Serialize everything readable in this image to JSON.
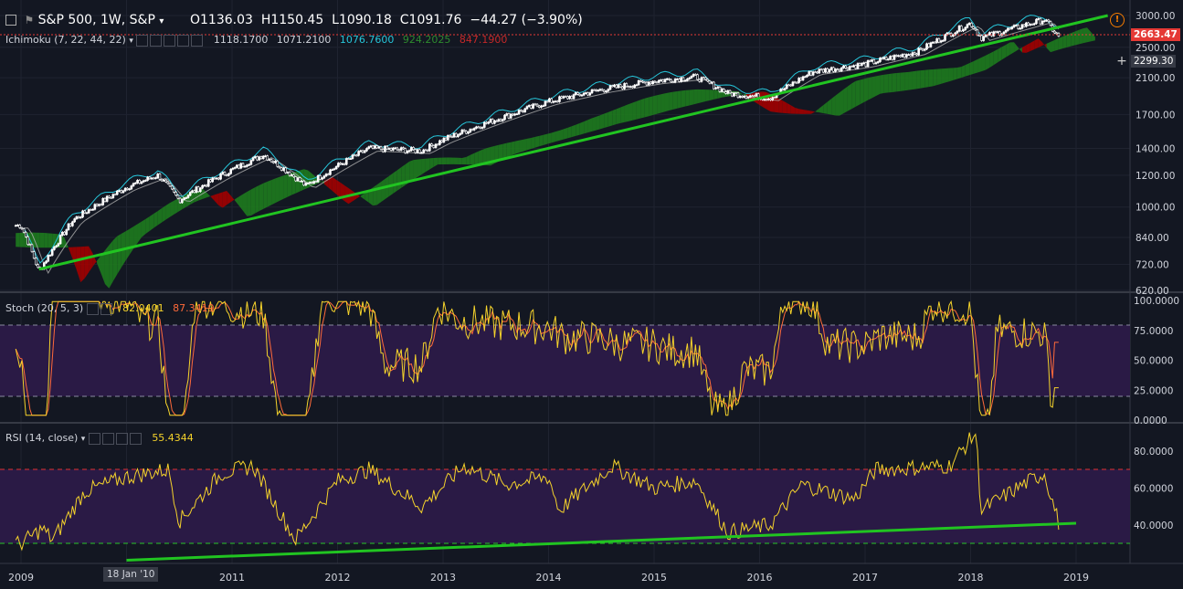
{
  "header": {
    "symbol": "S&P 500, 1W, S&P",
    "open": "O1136.03",
    "high": "H1150.45",
    "low": "L1090.18",
    "close": "C1091.76",
    "change": "−44.27 (−3.90%)"
  },
  "ichimoku": {
    "label": "Ichimoku (7, 22, 44, 22)",
    "v1": "1118.1700",
    "v2": "1071.2100",
    "v3": "1076.7600",
    "v4": "924.2025",
    "v5": "847.1900"
  },
  "stoch": {
    "label": "Stoch (20, 5, 3)",
    "k": "82.0401",
    "d": "87.3419"
  },
  "rsi": {
    "label": "RSI (14, close)",
    "value": "55.4344"
  },
  "price_badges": {
    "last": "2663.47",
    "crosshair": "2299.30"
  },
  "crosshair_date": "18 Jan '10",
  "colors": {
    "background": "#131722",
    "up": "#ffffff",
    "tenkan": "#26c6da",
    "kijun": "#b0b0b0",
    "cloud_green": "#1e7b1e",
    "cloud_red": "#a30000",
    "trendline": "#21c421",
    "stoch_k": "#f5d32b",
    "stoch_d": "#ff6a3a",
    "rsi": "#f5d32b",
    "indicator_bg": "#2a1a45"
  },
  "chart_data": [
    {
      "type": "candlestick",
      "title": "S&P 500, 1W, S&P",
      "x": [
        "2009",
        "2010",
        "2011",
        "2012",
        "2013",
        "2014",
        "2015",
        "2016",
        "2017",
        "2018",
        "2019"
      ],
      "y_scale": "log",
      "y_ticks": [
        620,
        720,
        840,
        1000,
        1200,
        1400,
        1700,
        2100,
        2500,
        3000
      ],
      "ylim": [
        620,
        3000
      ],
      "approx_close_path": [
        [
          2009.0,
          900
        ],
        [
          2009.17,
          690
        ],
        [
          2009.5,
          930
        ],
        [
          2010.0,
          1120
        ],
        [
          2010.3,
          1200
        ],
        [
          2010.5,
          1040
        ],
        [
          2010.9,
          1200
        ],
        [
          2011.3,
          1350
        ],
        [
          2011.7,
          1130
        ],
        [
          2012.3,
          1400
        ],
        [
          2012.8,
          1380
        ],
        [
          2013.0,
          1470
        ],
        [
          2013.5,
          1650
        ],
        [
          2014.0,
          1830
        ],
        [
          2014.5,
          1960
        ],
        [
          2015.0,
          2060
        ],
        [
          2015.4,
          2110
        ],
        [
          2015.7,
          1920
        ],
        [
          2016.1,
          1870
        ],
        [
          2016.5,
          2170
        ],
        [
          2017.0,
          2270
        ],
        [
          2017.5,
          2440
        ],
        [
          2018.0,
          2870
        ],
        [
          2018.1,
          2640
        ],
        [
          2018.7,
          2930
        ],
        [
          2018.83,
          2660
        ]
      ],
      "trendline": [
        [
          2009.17,
          700
        ],
        [
          2019.3,
          3000
        ]
      ],
      "ichimoku_values": [
        1118.17,
        1071.21,
        1076.76,
        924.2025,
        847.19
      ],
      "last_price": 2663.47,
      "crosshair_price": 2299.3
    },
    {
      "type": "line",
      "title": "Stoch (20, 5, 3)",
      "y_ticks": [
        0,
        25,
        50,
        75,
        100
      ],
      "ylim": [
        0,
        100
      ],
      "bands": [
        20,
        80
      ],
      "k_last": 82.0401,
      "d_last": 87.3419
    },
    {
      "type": "line",
      "title": "RSI (14, close)",
      "y_ticks": [
        40,
        60,
        80
      ],
      "ylim": [
        20,
        95
      ],
      "bands": [
        30,
        70
      ],
      "approx_path": [
        [
          2009.0,
          30
        ],
        [
          2009.2,
          38
        ],
        [
          2009.3,
          32
        ],
        [
          2009.6,
          58
        ],
        [
          2010.0,
          66
        ],
        [
          2010.4,
          70
        ],
        [
          2010.5,
          42
        ],
        [
          2010.9,
          68
        ],
        [
          2011.2,
          72
        ],
        [
          2011.6,
          32
        ],
        [
          2012.0,
          64
        ],
        [
          2012.3,
          70
        ],
        [
          2012.8,
          50
        ],
        [
          2013.2,
          72
        ],
        [
          2013.6,
          62
        ],
        [
          2014.0,
          66
        ],
        [
          2014.1,
          48
        ],
        [
          2014.6,
          72
        ],
        [
          2015.0,
          60
        ],
        [
          2015.4,
          64
        ],
        [
          2015.7,
          36
        ],
        [
          2016.1,
          40
        ],
        [
          2016.4,
          62
        ],
        [
          2016.9,
          54
        ],
        [
          2017.1,
          70
        ],
        [
          2017.8,
          72
        ],
        [
          2018.05,
          90
        ],
        [
          2018.1,
          48
        ],
        [
          2018.5,
          62
        ],
        [
          2018.7,
          68
        ],
        [
          2018.85,
          38
        ]
      ],
      "trendline": [
        [
          2010.0,
          21
        ],
        [
          2019.0,
          41
        ]
      ],
      "value": 55.4344
    }
  ]
}
